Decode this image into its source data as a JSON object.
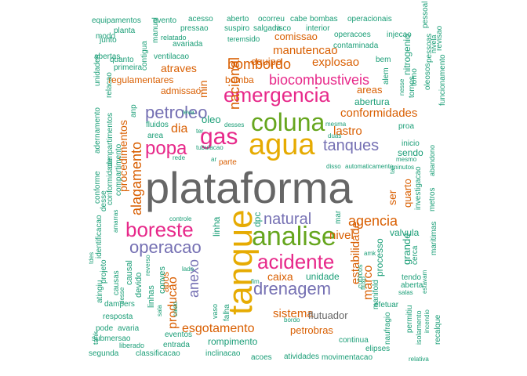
{
  "colors": {
    "teal": "#1b9e77",
    "orange": "#d95f02",
    "purple": "#7570b3",
    "pink": "#e7298a",
    "green": "#66a61e",
    "gold": "#e6ab02",
    "brown": "#a6761d",
    "gray": "#666666"
  },
  "words": [
    "plataforma",
    "tanque",
    "agua",
    "analise",
    "coluna",
    "gas",
    "emergencia",
    "boreste",
    "acidente",
    "popa",
    "petroleo",
    "drenagem",
    "operacao",
    "natural",
    "tanques",
    "biocombustiveis",
    "nacional",
    "alagamento",
    "agencia",
    "bombordo",
    "procedimentos",
    "conformidades",
    "estabilidade",
    "anexo",
    "explosao",
    "manutencao",
    "lastro",
    "dia",
    "atraves",
    "sistema",
    "nivel",
    "esgotamento",
    "caixa",
    "producao",
    "marco",
    "equipe",
    "areas",
    "ser",
    "quarto",
    "comissao",
    "petrobras",
    "flutuador",
    "unidade",
    "rompimento",
    "apos",
    "abertura",
    "grande",
    "oleo",
    "dpc",
    "linha",
    "bomba",
    "admissao",
    "valvula",
    "processo",
    "min",
    "sendo",
    "fluidos",
    "compartimento",
    "identificacao",
    "investigacao",
    "regulamentares",
    "nitrogenio",
    "equipamentos",
    "evento",
    "acesso",
    "aberto",
    "ocorreu",
    "cabe",
    "bombas",
    "operacionais",
    "modo",
    "planta",
    "pressao",
    "suspiro",
    "salgada",
    "risco",
    "interior",
    "operacoes",
    "injecao",
    "pessoas",
    "junto",
    "contigua",
    "relatado",
    "terem",
    "sido",
    "contaminada",
    "alem",
    "bem",
    "abertas",
    "avariada",
    "quanto",
    "ventilacao",
    "primeira",
    "unidades",
    "relacao",
    "adernamento",
    "conforme",
    "desse",
    "conformidade",
    "compartimentos",
    "anp",
    "ter",
    "desses",
    "mesma",
    "area",
    "duas",
    "proa",
    "inicio",
    "fim",
    "cubicos",
    "mar",
    "manifold",
    "naufragio",
    "maritimas",
    "metros",
    "abandono",
    "amk",
    "cerca",
    "tendo",
    "salas",
    "aberta",
    "efetuar",
    "fluxo",
    "permitiu",
    "incendio",
    "isolamento",
    "recalque",
    "relativa",
    "elipses",
    "atividades",
    "movimentacao",
    "acoes",
    "inclinacao",
    "continua",
    "bordo",
    "classificacao",
    "segunda",
    "liberado",
    "submersao",
    "resposta",
    "pode",
    "avaria",
    "tank",
    "eventos",
    "entrada",
    "dampers",
    "linhas",
    "conves",
    "devido",
    "causal",
    "causas",
    "projeto",
    "atingiu",
    "lado",
    "controle",
    "parte",
    "disso",
    "automaticamente",
    "tal",
    "ar",
    "manual",
    "oleosos",
    "tornos",
    "funcionamento",
    "revisao",
    "nesse",
    "torno",
    "nivela",
    "desse",
    "amarras",
    "tdes",
    "pessoal",
    "caido",
    "sala",
    "reverso",
    "estavam",
    "vaso",
    "falha",
    "leva",
    "rede",
    "minutos",
    "mesmo",
    "tubulacao"
  ]
}
